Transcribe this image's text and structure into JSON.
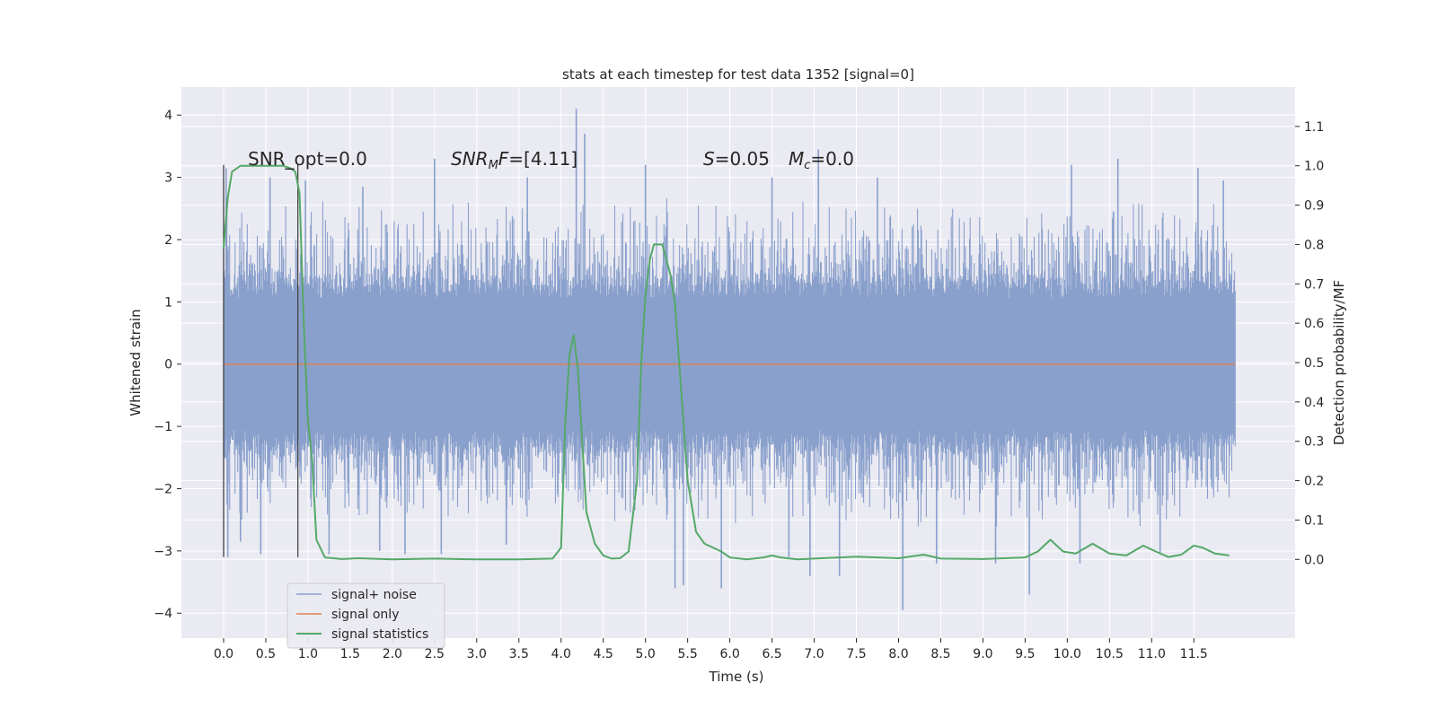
{
  "chart_data": {
    "type": "line",
    "title": "stats at each timestep for test data 1352 [signal=0]",
    "xlabel": "Time (s)",
    "ylabel": "Whitened strain",
    "ylabel_right": "Detection probability/MF",
    "xlim": [
      -0.5,
      12.7
    ],
    "ylim": [
      -4.4,
      4.45
    ],
    "ylim_right": [
      -0.2,
      1.2
    ],
    "x_ticks": [
      "0.0",
      "0.5",
      "1.0",
      "1.5",
      "2.0",
      "2.5",
      "3.0",
      "3.5",
      "4.0",
      "4.5",
      "5.0",
      "5.5",
      "6.0",
      "6.5",
      "7.0",
      "7.5",
      "8.0",
      "8.5",
      "9.0",
      "9.5",
      "10.0",
      "10.5",
      "11.0",
      "11.5"
    ],
    "y_ticks": [
      "4",
      "3",
      "2",
      "1",
      "0",
      "−1",
      "−2",
      "−3",
      "−4"
    ],
    "y_ticks_right": [
      "1.1",
      "1.0",
      "0.9",
      "0.8",
      "0.7",
      "0.6",
      "0.5",
      "0.4",
      "0.3",
      "0.2",
      "0.1",
      "0.0"
    ],
    "grid": true,
    "legend_position": "lower-left",
    "colors": {
      "signal_noise": "#8aa0cc",
      "signal_only": "#dd8452",
      "signal_statistics": "#55a868",
      "background": "#eaeaf2",
      "grid": "#ffffff",
      "vline": "#444444"
    },
    "annotations": {
      "snr_opt": "SNR_opt=0.0",
      "snr_mf_a": "SNR",
      "snr_mf_sub": "M",
      "snr_mf_b": "F",
      "snr_mf_val": "=[4.11]",
      "s_sym": "S",
      "s_val": "=0.05",
      "mc_sym": "M",
      "mc_sub": "c",
      "mc_val": "=0.0"
    },
    "vertical_lines_x": [
      0.0,
      0.88
    ],
    "series": [
      {
        "name": "signal+ noise",
        "x_range": [
          0.0,
          11.99
        ],
        "band_typical": [
          -1.9,
          1.95
        ],
        "spikes": [
          {
            "x": 0.03,
            "y": 3.15
          },
          {
            "x": 0.05,
            "y": -3.1
          },
          {
            "x": 0.2,
            "y": -2.85
          },
          {
            "x": 0.44,
            "y": -3.05
          },
          {
            "x": 0.55,
            "y": 3.0
          },
          {
            "x": 0.97,
            "y": 2.95
          },
          {
            "x": 1.25,
            "y": -3.05
          },
          {
            "x": 1.65,
            "y": 2.85
          },
          {
            "x": 1.85,
            "y": -3.0
          },
          {
            "x": 2.15,
            "y": -3.05
          },
          {
            "x": 2.5,
            "y": 3.3
          },
          {
            "x": 2.58,
            "y": -3.05
          },
          {
            "x": 3.35,
            "y": -2.9
          },
          {
            "x": 3.6,
            "y": 3.0
          },
          {
            "x": 4.18,
            "y": 4.1
          },
          {
            "x": 4.28,
            "y": 3.7
          },
          {
            "x": 5.0,
            "y": 3.2
          },
          {
            "x": 5.35,
            "y": -3.6
          },
          {
            "x": 5.45,
            "y": -3.55
          },
          {
            "x": 5.9,
            "y": -3.6
          },
          {
            "x": 6.5,
            "y": 3.0
          },
          {
            "x": 6.7,
            "y": -3.1
          },
          {
            "x": 6.95,
            "y": -3.4
          },
          {
            "x": 7.05,
            "y": 3.45
          },
          {
            "x": 7.3,
            "y": -3.4
          },
          {
            "x": 7.75,
            "y": 3.0
          },
          {
            "x": 8.05,
            "y": -3.95
          },
          {
            "x": 8.45,
            "y": -3.2
          },
          {
            "x": 9.15,
            "y": -3.2
          },
          {
            "x": 9.55,
            "y": -3.7
          },
          {
            "x": 10.05,
            "y": 3.2
          },
          {
            "x": 10.15,
            "y": -3.2
          },
          {
            "x": 10.6,
            "y": 3.3
          },
          {
            "x": 11.1,
            "y": -3.05
          },
          {
            "x": 11.55,
            "y": 3.15
          },
          {
            "x": 11.85,
            "y": 2.95
          }
        ]
      },
      {
        "name": "signal only",
        "x": [
          0.0,
          11.99
        ],
        "y": [
          0.0,
          0.0
        ]
      },
      {
        "name": "signal statistics",
        "axis": "right",
        "x": [
          0.0,
          0.05,
          0.1,
          0.2,
          0.3,
          0.5,
          0.7,
          0.78,
          0.85,
          0.9,
          0.95,
          1.0,
          1.05,
          1.1,
          1.2,
          1.4,
          1.6,
          2.0,
          2.5,
          3.0,
          3.5,
          3.9,
          4.0,
          4.05,
          4.1,
          4.15,
          4.2,
          4.25,
          4.3,
          4.4,
          4.5,
          4.6,
          4.7,
          4.8,
          4.9,
          4.95,
          5.0,
          5.05,
          5.1,
          5.2,
          5.3,
          5.35,
          5.4,
          5.5,
          5.6,
          5.7,
          5.8,
          5.9,
          6.0,
          6.2,
          6.4,
          6.5,
          6.6,
          6.8,
          7.0,
          7.5,
          8.0,
          8.3,
          8.5,
          9.0,
          9.5,
          9.65,
          9.8,
          9.95,
          10.1,
          10.3,
          10.5,
          10.7,
          10.9,
          11.05,
          11.2,
          11.35,
          11.5,
          11.6,
          11.75,
          11.92
        ],
        "y": [
          0.79,
          0.92,
          0.985,
          1.0,
          1.0,
          1.0,
          1.0,
          0.995,
          0.985,
          0.93,
          0.6,
          0.35,
          0.25,
          0.05,
          0.005,
          0.001,
          0.003,
          0.0,
          0.002,
          0.0,
          0.0,
          0.002,
          0.03,
          0.35,
          0.52,
          0.57,
          0.48,
          0.3,
          0.12,
          0.04,
          0.01,
          0.002,
          0.003,
          0.02,
          0.2,
          0.5,
          0.67,
          0.76,
          0.8,
          0.8,
          0.72,
          0.65,
          0.5,
          0.2,
          0.07,
          0.04,
          0.03,
          0.02,
          0.005,
          0.0,
          0.005,
          0.01,
          0.005,
          0.0,
          0.002,
          0.007,
          0.003,
          0.012,
          0.002,
          0.001,
          0.005,
          0.02,
          0.05,
          0.02,
          0.015,
          0.04,
          0.015,
          0.01,
          0.035,
          0.02,
          0.006,
          0.012,
          0.035,
          0.03,
          0.015,
          0.01
        ]
      }
    ]
  }
}
